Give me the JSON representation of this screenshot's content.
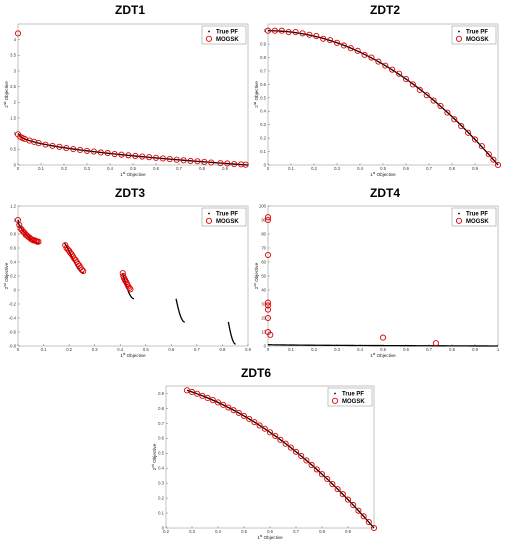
{
  "figure": {
    "colors": {
      "true_pf": "#000000",
      "mogsk": "#e00000",
      "axis": "#000000",
      "background": "#ffffff"
    }
  },
  "chart_data": [
    {
      "id": "zdt1",
      "type": "scatter",
      "title": "ZDT1",
      "xlabel": "1st Objective",
      "ylabel": "2nd Objective",
      "xlim": [
        0,
        1
      ],
      "ylim": [
        0,
        4.5
      ],
      "xticks": [
        "0",
        "0.1",
        "0.2",
        "0.3",
        "0.4",
        "0.5",
        "0.6",
        "0.7",
        "0.8",
        "0.9"
      ],
      "xtick_values": [
        0,
        0.1,
        0.2,
        0.3,
        0.4,
        0.5,
        0.6,
        0.7,
        0.8,
        0.9
      ],
      "yticks": [
        "0",
        "0.5",
        "1",
        "1.5",
        "2",
        "2.5",
        "3",
        "3.5",
        "4"
      ],
      "ytick_values": [
        0,
        0.5,
        1,
        1.5,
        2,
        2.5,
        3,
        3.5,
        4
      ],
      "legend": {
        "position": "top-right",
        "entries": [
          "True PF",
          "MOGSK"
        ]
      },
      "true_pf": {
        "function": "1 - sqrt(x)",
        "x_range": [
          0,
          1
        ]
      },
      "mogsk_points": [
        [
          0.0,
          4.2
        ],
        [
          0.0,
          0.98
        ],
        [
          0.01,
          0.9
        ],
        [
          0.02,
          0.86
        ],
        [
          0.03,
          0.83
        ],
        [
          0.05,
          0.78
        ],
        [
          0.07,
          0.74
        ],
        [
          0.09,
          0.7
        ],
        [
          0.12,
          0.65
        ],
        [
          0.15,
          0.61
        ],
        [
          0.18,
          0.58
        ],
        [
          0.21,
          0.54
        ],
        [
          0.24,
          0.51
        ],
        [
          0.27,
          0.48
        ],
        [
          0.3,
          0.45
        ],
        [
          0.33,
          0.43
        ],
        [
          0.36,
          0.4
        ],
        [
          0.39,
          0.38
        ],
        [
          0.42,
          0.35
        ],
        [
          0.45,
          0.33
        ],
        [
          0.48,
          0.31
        ],
        [
          0.51,
          0.29
        ],
        [
          0.54,
          0.27
        ],
        [
          0.57,
          0.25
        ],
        [
          0.6,
          0.23
        ],
        [
          0.63,
          0.21
        ],
        [
          0.66,
          0.19
        ],
        [
          0.69,
          0.17
        ],
        [
          0.72,
          0.15
        ],
        [
          0.75,
          0.13
        ],
        [
          0.78,
          0.12
        ],
        [
          0.81,
          0.1
        ],
        [
          0.84,
          0.08
        ],
        [
          0.88,
          0.06
        ],
        [
          0.91,
          0.05
        ],
        [
          0.94,
          0.03
        ],
        [
          0.97,
          0.02
        ],
        [
          0.99,
          0.01
        ]
      ]
    },
    {
      "id": "zdt2",
      "type": "scatter",
      "title": "ZDT2",
      "xlabel": "1st Objective",
      "ylabel": "2nd Objective",
      "xlim": [
        0,
        1
      ],
      "ylim": [
        0,
        1.05
      ],
      "xticks": [
        "0",
        "0.1",
        "0.2",
        "0.3",
        "0.4",
        "0.5",
        "0.6",
        "0.7",
        "0.8",
        "0.9"
      ],
      "xtick_values": [
        0,
        0.1,
        0.2,
        0.3,
        0.4,
        0.5,
        0.6,
        0.7,
        0.8,
        0.9
      ],
      "yticks": [
        "0",
        "0.1",
        "0.2",
        "0.3",
        "0.4",
        "0.5",
        "0.6",
        "0.7",
        "0.8",
        "0.9",
        "1"
      ],
      "ytick_values": [
        0,
        0.1,
        0.2,
        0.3,
        0.4,
        0.5,
        0.6,
        0.7,
        0.8,
        0.9,
        1
      ],
      "legend": {
        "position": "top-right",
        "entries": [
          "True PF",
          "MOGSK"
        ]
      },
      "true_pf": {
        "function": "1 - x^2",
        "x_range": [
          0,
          1
        ]
      },
      "mogsk_points": [
        [
          0.0,
          1.0
        ],
        [
          0.03,
          1.0
        ],
        [
          0.06,
          1.0
        ],
        [
          0.09,
          0.99
        ],
        [
          0.12,
          0.99
        ],
        [
          0.15,
          0.98
        ],
        [
          0.18,
          0.97
        ],
        [
          0.21,
          0.96
        ],
        [
          0.24,
          0.94
        ],
        [
          0.27,
          0.93
        ],
        [
          0.3,
          0.91
        ],
        [
          0.33,
          0.89
        ],
        [
          0.36,
          0.87
        ],
        [
          0.39,
          0.85
        ],
        [
          0.42,
          0.82
        ],
        [
          0.45,
          0.8
        ],
        [
          0.48,
          0.77
        ],
        [
          0.51,
          0.74
        ],
        [
          0.54,
          0.71
        ],
        [
          0.57,
          0.68
        ],
        [
          0.6,
          0.64
        ],
        [
          0.63,
          0.6
        ],
        [
          0.66,
          0.56
        ],
        [
          0.69,
          0.52
        ],
        [
          0.72,
          0.48
        ],
        [
          0.75,
          0.44
        ],
        [
          0.78,
          0.39
        ],
        [
          0.81,
          0.34
        ],
        [
          0.84,
          0.29
        ],
        [
          0.87,
          0.24
        ],
        [
          0.9,
          0.19
        ],
        [
          0.93,
          0.14
        ],
        [
          0.96,
          0.08
        ],
        [
          0.98,
          0.04
        ],
        [
          1.0,
          0.0
        ]
      ]
    },
    {
      "id": "zdt3",
      "type": "scatter",
      "title": "ZDT3",
      "xlabel": "1st Objective",
      "ylabel": "2nd Objective",
      "xlim": [
        0,
        0.9
      ],
      "ylim": [
        -0.8,
        1.2
      ],
      "xticks": [
        "0",
        "0.1",
        "0.2",
        "0.3",
        "0.4",
        "0.5",
        "0.6",
        "0.7",
        "0.8",
        "0.9"
      ],
      "xtick_values": [
        0,
        0.1,
        0.2,
        0.3,
        0.4,
        0.5,
        0.6,
        0.7,
        0.8,
        0.9
      ],
      "yticks": [
        "-0.8",
        "-0.6",
        "-0.4",
        "-0.2",
        "0",
        "0.2",
        "0.4",
        "0.6",
        "0.8",
        "1",
        "1.2"
      ],
      "ytick_values": [
        -0.8,
        -0.6,
        -0.4,
        -0.2,
        0,
        0.2,
        0.4,
        0.6,
        0.8,
        1,
        1.2
      ],
      "legend": {
        "position": "top-right",
        "entries": [
          "True PF",
          "MOGSK"
        ]
      },
      "true_pf": {
        "function": "1 - sqrt(x) - x*sin(10*pi*x)",
        "segments": [
          [
            0,
            0.083
          ],
          [
            0.1822,
            0.2578
          ],
          [
            0.4093,
            0.4539
          ],
          [
            0.6184,
            0.6525
          ],
          [
            0.8233,
            0.8518
          ]
        ]
      },
      "mogsk_points": [
        [
          0.0,
          1.0
        ],
        [
          0.005,
          0.93
        ],
        [
          0.01,
          0.88
        ],
        [
          0.015,
          0.86
        ],
        [
          0.02,
          0.83
        ],
        [
          0.025,
          0.82
        ],
        [
          0.03,
          0.79
        ],
        [
          0.035,
          0.78
        ],
        [
          0.04,
          0.76
        ],
        [
          0.045,
          0.75
        ],
        [
          0.05,
          0.73
        ],
        [
          0.055,
          0.72
        ],
        [
          0.06,
          0.71
        ],
        [
          0.065,
          0.71
        ],
        [
          0.07,
          0.7
        ],
        [
          0.075,
          0.69
        ],
        [
          0.08,
          0.69
        ],
        [
          0.185,
          0.64
        ],
        [
          0.19,
          0.6
        ],
        [
          0.195,
          0.58
        ],
        [
          0.2,
          0.56
        ],
        [
          0.205,
          0.53
        ],
        [
          0.21,
          0.51
        ],
        [
          0.215,
          0.48
        ],
        [
          0.22,
          0.45
        ],
        [
          0.225,
          0.43
        ],
        [
          0.23,
          0.4
        ],
        [
          0.235,
          0.37
        ],
        [
          0.24,
          0.35
        ],
        [
          0.245,
          0.32
        ],
        [
          0.25,
          0.29
        ],
        [
          0.255,
          0.27
        ],
        [
          0.41,
          0.24
        ],
        [
          0.412,
          0.2
        ],
        [
          0.415,
          0.17
        ],
        [
          0.418,
          0.15
        ],
        [
          0.42,
          0.13
        ],
        [
          0.424,
          0.11
        ],
        [
          0.428,
          0.08
        ],
        [
          0.432,
          0.05
        ],
        [
          0.436,
          0.03
        ],
        [
          0.44,
          0.01
        ]
      ]
    },
    {
      "id": "zdt4",
      "type": "scatter",
      "title": "ZDT4",
      "xlabel": "1st Objective",
      "ylabel": "2nd Objective",
      "xlim": [
        0,
        1
      ],
      "ylim": [
        0,
        100
      ],
      "xticks": [
        "0",
        "0.1",
        "0.2",
        "0.3",
        "0.4",
        "0.5",
        "0.6",
        "0.7",
        "0.8",
        "0.9",
        "1"
      ],
      "xtick_values": [
        0,
        0.1,
        0.2,
        0.3,
        0.4,
        0.5,
        0.6,
        0.7,
        0.8,
        0.9,
        1
      ],
      "yticks": [
        "0",
        "10",
        "20",
        "30",
        "40",
        "50",
        "60",
        "70",
        "80",
        "90",
        "100"
      ],
      "ytick_values": [
        0,
        10,
        20,
        30,
        40,
        50,
        60,
        70,
        80,
        90,
        100
      ],
      "legend": {
        "position": "top-right",
        "entries": [
          "True PF",
          "MOGSK"
        ]
      },
      "true_pf": {
        "function": "1 - sqrt(x)",
        "x_range": [
          0,
          1
        ]
      },
      "mogsk_points": [
        [
          0.0,
          90
        ],
        [
          0.0,
          92
        ],
        [
          0.0,
          65
        ],
        [
          0.0,
          31
        ],
        [
          0.0,
          29
        ],
        [
          0.0,
          26
        ],
        [
          0.0,
          20
        ],
        [
          0.0,
          10
        ],
        [
          0.01,
          8
        ],
        [
          0.5,
          6
        ],
        [
          0.73,
          2
        ]
      ]
    },
    {
      "id": "zdt6",
      "type": "scatter",
      "title": "ZDT6",
      "xlabel": "1st Objective",
      "ylabel": "2nd Objective",
      "xlim": [
        0.2,
        1
      ],
      "ylim": [
        0,
        0.95
      ],
      "xticks": [
        "0.2",
        "0.3",
        "0.4",
        "0.5",
        "0.6",
        "0.7",
        "0.8",
        "0.9"
      ],
      "xtick_values": [
        0.2,
        0.3,
        0.4,
        0.5,
        0.6,
        0.7,
        0.8,
        0.9
      ],
      "yticks": [
        "0",
        "0.1",
        "0.2",
        "0.3",
        "0.4",
        "0.5",
        "0.6",
        "0.7",
        "0.8",
        "0.9"
      ],
      "ytick_values": [
        0,
        0.1,
        0.2,
        0.3,
        0.4,
        0.5,
        0.6,
        0.7,
        0.8,
        0.9
      ],
      "legend": {
        "position": "top-right",
        "entries": [
          "True PF",
          "MOGSK"
        ]
      },
      "true_pf": {
        "function": "1 - x^2",
        "x_range": [
          0.2808,
          1
        ]
      },
      "mogsk_points": [
        [
          0.2808,
          0.921
        ],
        [
          0.3,
          0.91
        ],
        [
          0.32,
          0.898
        ],
        [
          0.34,
          0.884
        ],
        [
          0.36,
          0.87
        ],
        [
          0.38,
          0.856
        ],
        [
          0.4,
          0.84
        ],
        [
          0.42,
          0.824
        ],
        [
          0.44,
          0.806
        ],
        [
          0.46,
          0.788
        ],
        [
          0.48,
          0.77
        ],
        [
          0.5,
          0.75
        ],
        [
          0.52,
          0.73
        ],
        [
          0.54,
          0.708
        ],
        [
          0.56,
          0.686
        ],
        [
          0.58,
          0.664
        ],
        [
          0.6,
          0.64
        ],
        [
          0.62,
          0.616
        ],
        [
          0.64,
          0.59
        ],
        [
          0.66,
          0.564
        ],
        [
          0.68,
          0.538
        ],
        [
          0.7,
          0.51
        ],
        [
          0.72,
          0.482
        ],
        [
          0.74,
          0.452
        ],
        [
          0.76,
          0.422
        ],
        [
          0.78,
          0.392
        ],
        [
          0.8,
          0.36
        ],
        [
          0.82,
          0.328
        ],
        [
          0.84,
          0.294
        ],
        [
          0.86,
          0.26
        ],
        [
          0.88,
          0.226
        ],
        [
          0.9,
          0.19
        ],
        [
          0.92,
          0.154
        ],
        [
          0.94,
          0.116
        ],
        [
          0.96,
          0.078
        ],
        [
          0.98,
          0.04
        ],
        [
          1.0,
          0.0
        ]
      ]
    }
  ]
}
